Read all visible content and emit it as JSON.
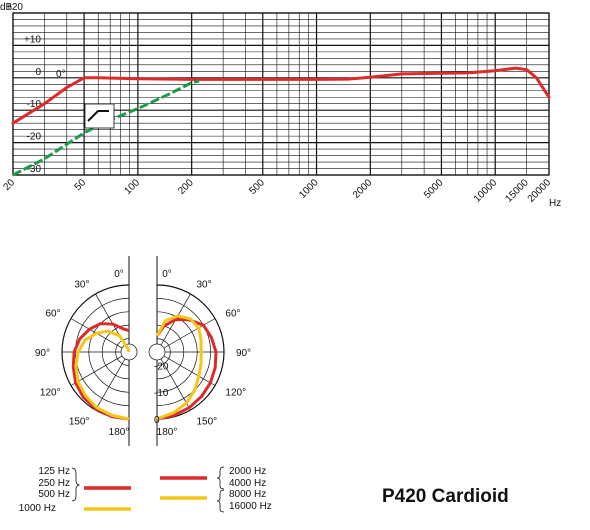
{
  "chart_data": [
    {
      "type": "line",
      "title": "",
      "xlabel": "Hz",
      "ylabel": "dB",
      "x_scale": "log",
      "xlim": [
        20,
        20000
      ],
      "ylim": [
        -30,
        20
      ],
      "x_ticks": [
        "20",
        "50",
        "100",
        "200",
        "500",
        "1000",
        "2000",
        "5000",
        "10000",
        "15000",
        "20000"
      ],
      "y_ticks": [
        "+20",
        "+10",
        "0",
        "-10",
        "-20",
        "-30"
      ],
      "annotation": "0°",
      "series": [
        {
          "color": "#dd2a2a",
          "points": [
            [
              20,
              -14
            ],
            [
              30,
              -8
            ],
            [
              40,
              -3
            ],
            [
              50,
              0
            ],
            [
              60,
              0
            ],
            [
              100,
              -0.3
            ],
            [
              200,
              -0.5
            ],
            [
              500,
              -0.5
            ],
            [
              1000,
              -0.5
            ],
            [
              1500,
              -0.4
            ],
            [
              2000,
              0.2
            ],
            [
              3000,
              1.2
            ],
            [
              5000,
              1.4
            ],
            [
              7000,
              1.5
            ],
            [
              10000,
              2.2
            ],
            [
              13000,
              3
            ],
            [
              15000,
              2.5
            ],
            [
              17000,
              0
            ],
            [
              20000,
              -6
            ]
          ]
        },
        {
          "color": "#1e9a4a",
          "style": "dashed",
          "points": [
            [
              20,
              -30
            ],
            [
              30,
              -25
            ],
            [
              40,
              -20.5
            ],
            [
              50,
              -17
            ],
            [
              70,
              -13
            ],
            [
              100,
              -9.5
            ],
            [
              150,
              -5
            ],
            [
              200,
              -1.5
            ],
            [
              220,
              -1
            ]
          ]
        }
      ]
    },
    {
      "type": "polar",
      "angle_labels": [
        "180°",
        "150°",
        "120°",
        "90°",
        "60°",
        "30°",
        "0°"
      ],
      "radial_labels": [
        "0",
        "-10",
        "-20"
      ],
      "left_series": [
        {
          "name": "125 Hz",
          "color": "#dd2a2a",
          "db": [
            [
              0,
              0
            ],
            [
              15,
              0
            ],
            [
              30,
              -0.5
            ],
            [
              45,
              -1
            ],
            [
              60,
              -2
            ],
            [
              75,
              -3.5
            ],
            [
              90,
              -4.5
            ],
            [
              105,
              -6
            ],
            [
              120,
              -8
            ],
            [
              135,
              -10
            ],
            [
              150,
              -13
            ],
            [
              165,
              -16
            ],
            [
              180,
              -17
            ]
          ]
        },
        {
          "name": "1000 Hz",
          "color": "#f5c518",
          "db": [
            [
              0,
              0
            ],
            [
              15,
              -0.5
            ],
            [
              30,
              -1
            ],
            [
              45,
              -2
            ],
            [
              60,
              -3
            ],
            [
              75,
              -4.5
            ],
            [
              90,
              -6
            ],
            [
              105,
              -8
            ],
            [
              120,
              -11
            ],
            [
              135,
              -14
            ],
            [
              150,
              -18
            ],
            [
              165,
              -24
            ],
            [
              180,
              -28
            ]
          ]
        }
      ],
      "right_series": [
        {
          "name": "2000 Hz",
          "color": "#dd2a2a",
          "db": [
            [
              0,
              0
            ],
            [
              15,
              -0.5
            ],
            [
              30,
              -1
            ],
            [
              45,
              -1.5
            ],
            [
              60,
              -2
            ],
            [
              75,
              -2.5
            ],
            [
              90,
              -3
            ],
            [
              105,
              -4
            ],
            [
              120,
              -5
            ],
            [
              135,
              -8
            ],
            [
              150,
              -11
            ],
            [
              165,
              -15
            ],
            [
              180,
              -19
            ]
          ]
        },
        {
          "name": "8000 Hz",
          "color": "#f5c518",
          "db": [
            [
              0,
              0
            ],
            [
              15,
              -1.5
            ],
            [
              30,
              -3
            ],
            [
              45,
              -5
            ],
            [
              60,
              -7
            ],
            [
              75,
              -8
            ],
            [
              90,
              -8.5
            ],
            [
              105,
              -8
            ],
            [
              120,
              -7
            ],
            [
              135,
              -7.5
            ],
            [
              150,
              -9.5
            ],
            [
              165,
              -13
            ],
            [
              180,
              -19
            ]
          ]
        }
      ]
    }
  ],
  "legend": {
    "left_red": [
      "125 Hz",
      "250 Hz",
      "500 Hz"
    ],
    "left_yellow": "1000 Hz",
    "right_red": [
      "2000 Hz",
      "4000 Hz"
    ],
    "right_yellow": [
      "8000 Hz",
      "16000 Hz"
    ],
    "red": "#dd2a2a",
    "yellow": "#f5c518"
  },
  "product_title": "P420 Cardioid"
}
